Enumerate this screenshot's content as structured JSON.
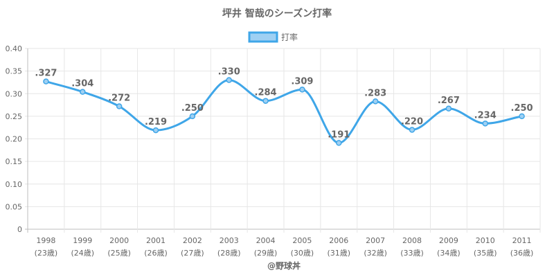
{
  "chart_data": {
    "type": "line",
    "title": "坪井 智哉のシーズン打率",
    "legend_position": "top-center",
    "grid": true,
    "ylim": [
      0,
      0.4
    ],
    "yticks": [
      "0",
      "0.05",
      "0.10",
      "0.15",
      "0.20",
      "0.25",
      "0.30",
      "0.35",
      "0.40"
    ],
    "categories": [
      "1998",
      "1999",
      "2000",
      "2001",
      "2002",
      "2003",
      "2004",
      "2005",
      "2006",
      "2007",
      "2008",
      "2009",
      "2010",
      "2011"
    ],
    "category_sublabels": [
      "(23歳)",
      "(24歳)",
      "(25歳)",
      "(26歳)",
      "(27歳)",
      "(28歳)",
      "(29歳)",
      "(30歳)",
      "(31歳)",
      "(32歳)",
      "(33歳)",
      "(34歳)",
      "(35歳)",
      "(36歳)"
    ],
    "series": [
      {
        "name": "打率",
        "color": "#3fa6e8",
        "fill": "#9fd0f3",
        "values": [
          0.327,
          0.304,
          0.272,
          0.219,
          0.25,
          0.33,
          0.284,
          0.309,
          0.191,
          0.283,
          0.22,
          0.267,
          0.234,
          0.25
        ],
        "labels": [
          ".327",
          ".304",
          ".272",
          ".219",
          ".250",
          ".330",
          ".284",
          ".309",
          ".191",
          ".283",
          ".220",
          ".267",
          ".234",
          ".250"
        ]
      }
    ]
  },
  "credit": "@野球丼"
}
